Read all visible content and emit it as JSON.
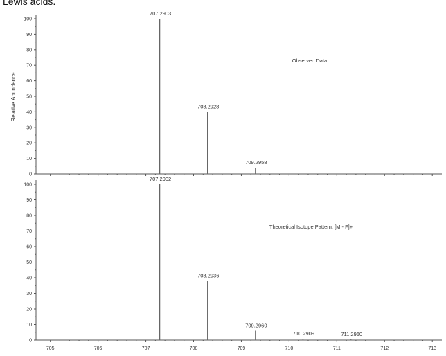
{
  "header": {
    "caption": "Lewis acids."
  },
  "chart_data": [
    {
      "type": "bar",
      "annotation": "Observed Data",
      "ylabel": "Relative Abundance",
      "xlabel": "",
      "xlim": [
        704.7,
        713.2
      ],
      "ylim": [
        0,
        105
      ],
      "y_ticks": [
        0,
        10,
        20,
        30,
        40,
        50,
        60,
        70,
        80,
        90,
        100
      ],
      "peaks": [
        {
          "mz": 707.2903,
          "intensity": 100,
          "label": "707.2903"
        },
        {
          "mz": 708.2928,
          "intensity": 40,
          "label": "708.2928"
        },
        {
          "mz": 709.2958,
          "intensity": 4,
          "label": "709.2958"
        }
      ]
    },
    {
      "type": "bar",
      "annotation": "Theoretical Isotope Pattern: [M - F]+",
      "ylabel": "",
      "xlabel": "",
      "xlim": [
        704.7,
        713.2
      ],
      "ylim": [
        0,
        105
      ],
      "y_ticks": [
        0,
        10,
        20,
        30,
        40,
        50,
        60,
        70,
        80,
        90,
        100
      ],
      "x_ticks": [
        "705",
        "706",
        "707",
        "708",
        "709",
        "710",
        "711",
        "712",
        "713"
      ],
      "peaks": [
        {
          "mz": 707.2902,
          "intensity": 100,
          "label": "707.2902"
        },
        {
          "mz": 708.2936,
          "intensity": 38,
          "label": "708.2936"
        },
        {
          "mz": 709.296,
          "intensity": 6,
          "label": "709.2960"
        },
        {
          "mz": 710.2909,
          "intensity": 0.8,
          "label": "710.2909"
        },
        {
          "mz": 711.296,
          "intensity": 0.4,
          "label": "711.2960"
        }
      ]
    }
  ]
}
